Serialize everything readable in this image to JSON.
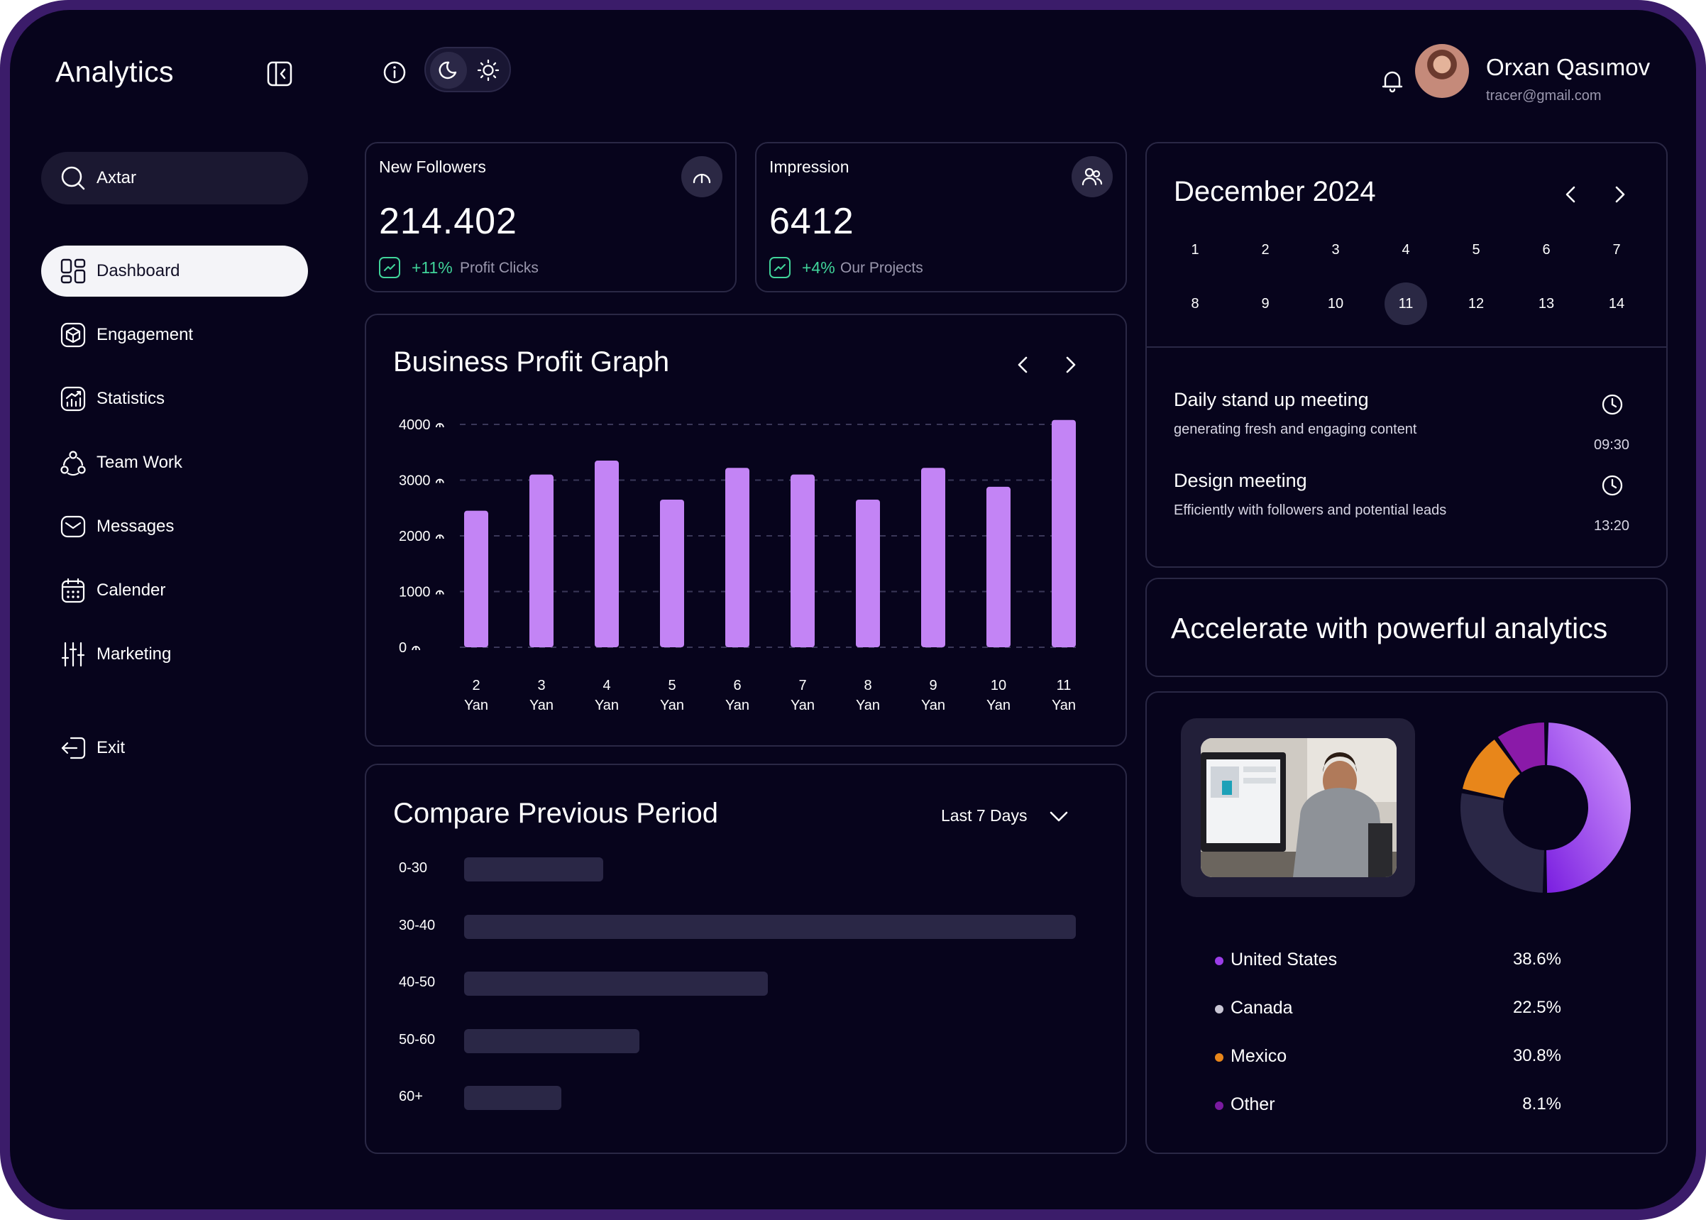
{
  "header": {
    "brand": "Analytics",
    "user": {
      "name": "Orxan Qasımov",
      "email": "tracer@gmail.com"
    }
  },
  "sidebar": {
    "search_placeholder": "Axtar",
    "items": [
      {
        "label": "Dashboard",
        "icon": "dashboard-icon",
        "active": true
      },
      {
        "label": "Engagement",
        "icon": "cube-icon"
      },
      {
        "label": "Statistics",
        "icon": "stats-icon"
      },
      {
        "label": "Team Work",
        "icon": "team-icon"
      },
      {
        "label": "Messages",
        "icon": "mail-icon"
      },
      {
        "label": "Calender",
        "icon": "calendar-icon"
      },
      {
        "label": "Marketing",
        "icon": "sliders-icon"
      }
    ],
    "exit_label": "Exit"
  },
  "stats": [
    {
      "title": "New Followers",
      "value": "214.402",
      "change": "+11%",
      "change_label": "Profit Clicks",
      "icon": "gauge-icon"
    },
    {
      "title": "Impression",
      "value": "6412",
      "change": "+4%",
      "change_label": "Our Projects",
      "icon": "users-icon"
    }
  ],
  "profit_graph": {
    "title": "Business Profit Graph"
  },
  "chart_data": {
    "type": "bar",
    "title": "Business Profit Graph",
    "categories": [
      "2 Yan",
      "3 Yan",
      "4 Yan",
      "5 Yan",
      "6 Yan",
      "7 Yan",
      "8 Yan",
      "9 Yan",
      "10 Yan",
      "11 Yan"
    ],
    "x_day": [
      "2",
      "3",
      "4",
      "5",
      "6",
      "7",
      "8",
      "9",
      "10",
      "11"
    ],
    "x_month": "Yan",
    "values": [
      2450,
      3100,
      3350,
      2650,
      3220,
      3100,
      2650,
      3220,
      2880,
      4080
    ],
    "yticks": [
      "4000",
      "3000",
      "2000",
      "1000",
      "0"
    ],
    "ylim": [
      0,
      4000
    ],
    "grid": true,
    "bar_color": "#c384f5"
  },
  "compare": {
    "title": "Compare Previous Period",
    "dropdown": "Last 7 Days",
    "rows": [
      {
        "label": "0-30",
        "value": 0.227
      },
      {
        "label": "30-40",
        "value": 1.0
      },
      {
        "label": "40-50",
        "value": 0.497
      },
      {
        "label": "50-60",
        "value": 0.286
      },
      {
        "label": "60+",
        "value": 0.159
      }
    ]
  },
  "calendar": {
    "month": "December 2024",
    "week1": [
      "1",
      "2",
      "3",
      "4",
      "5",
      "6",
      "7"
    ],
    "week2": [
      "8",
      "9",
      "10",
      "11",
      "12",
      "13",
      "14"
    ],
    "selected": "11",
    "events": [
      {
        "title": "Daily stand up meeting",
        "desc": "generating fresh and engaging content",
        "time": "09:30"
      },
      {
        "title": "Design meeting",
        "desc": "Efficiently with followers and potential leads",
        "time": "13:20"
      }
    ]
  },
  "promo": {
    "text": "Accelerate with powerful analytics"
  },
  "countries": {
    "items": [
      {
        "name": "United States",
        "value": "38.6%",
        "color": "#9b3de8"
      },
      {
        "name": "Canada",
        "value": "22.5%",
        "color": "#c9c6d4"
      },
      {
        "name": "Mexico",
        "value": "30.8%",
        "color": "#e8861a"
      },
      {
        "name": "Other",
        "value": "8.1%",
        "color": "#7a1aa0"
      }
    ]
  },
  "donut": {
    "segments": [
      {
        "name": "purple-main",
        "value": 50,
        "color": "#a44bf0"
      },
      {
        "name": "dark",
        "value": 28,
        "color": "#2a2746"
      },
      {
        "name": "orange",
        "value": 12,
        "color": "#e8861a"
      },
      {
        "name": "magenta",
        "value": 10,
        "color": "#8a1aa8"
      }
    ]
  }
}
